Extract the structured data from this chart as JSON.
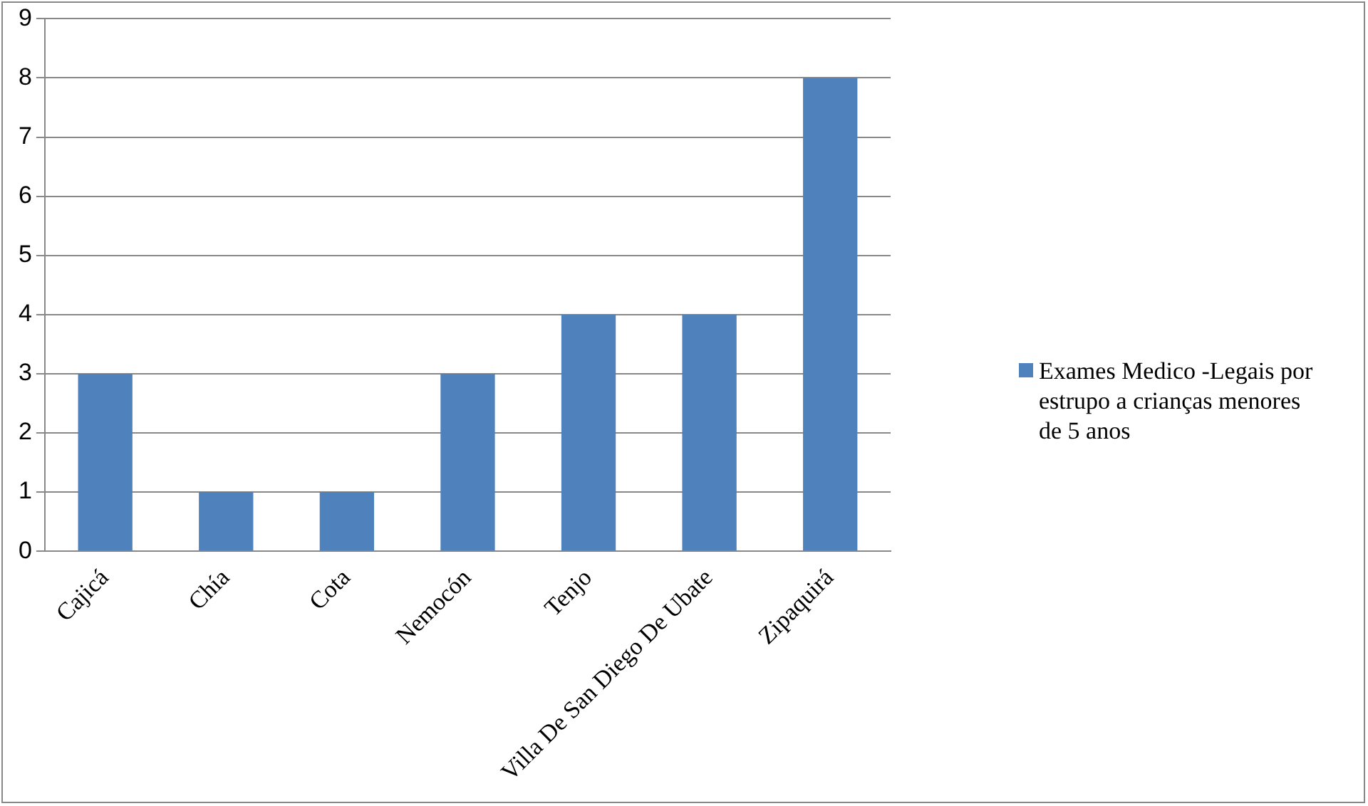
{
  "chart_data": {
    "type": "bar",
    "categories": [
      "Cajicá",
      "Chía",
      "Cota",
      "Nemocón",
      "Tenjo",
      "Villa De San Diego De Ubate",
      "Zipaquirá"
    ],
    "series": [
      {
        "name": "Exames Medico -Legais por estrupo a crianças menores de 5 anos",
        "color": "#4f81bd",
        "values": [
          3,
          1,
          1,
          3,
          4,
          4,
          8
        ]
      }
    ],
    "ylim": [
      0,
      9
    ],
    "yticks": [
      0,
      1,
      2,
      3,
      4,
      5,
      6,
      7,
      8,
      9
    ],
    "grid": "y",
    "legend": "right"
  }
}
